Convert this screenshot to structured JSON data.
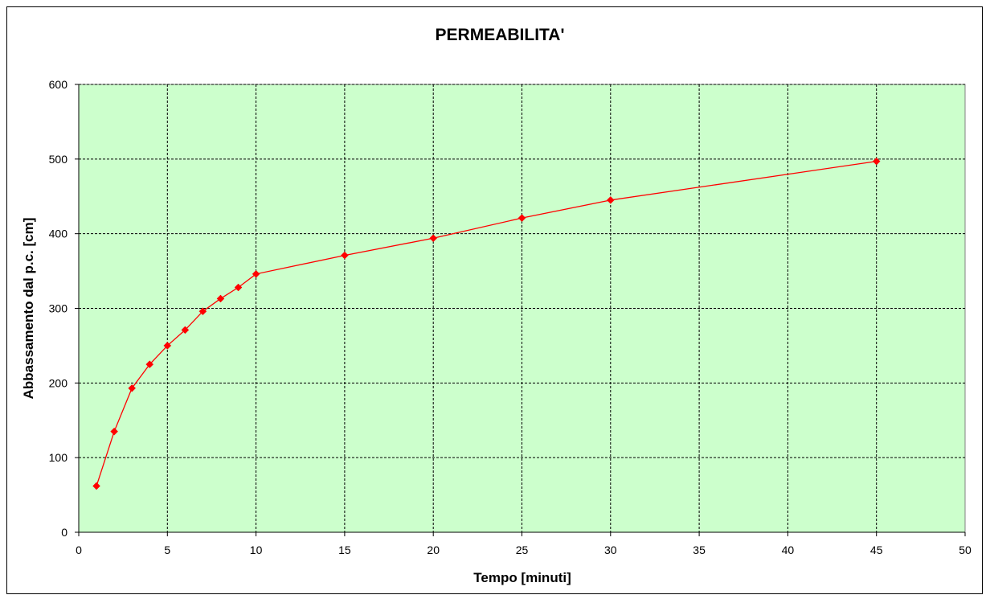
{
  "chart_data": {
    "type": "line",
    "title": "PERMEABILITA'",
    "xlabel": "Tempo [minuti]",
    "ylabel": "Abbassamento dal p.c. [cm]",
    "xlim": [
      0,
      50
    ],
    "ylim": [
      0,
      600
    ],
    "xticks": [
      0,
      5,
      10,
      15,
      20,
      25,
      30,
      35,
      40,
      45,
      50
    ],
    "yticks": [
      0,
      100,
      200,
      300,
      400,
      500,
      600
    ],
    "grid": true,
    "legend": "none",
    "plot_background": "#ccffcc",
    "series": [
      {
        "color": "#ff0000",
        "marker": "diamond",
        "x": [
          1,
          2,
          3,
          4,
          5,
          6,
          7,
          8,
          9,
          10,
          15,
          20,
          25,
          30,
          45
        ],
        "y": [
          62,
          135,
          193,
          225,
          250,
          271,
          296,
          313,
          328,
          346,
          371,
          394,
          421,
          445,
          497
        ]
      }
    ]
  }
}
